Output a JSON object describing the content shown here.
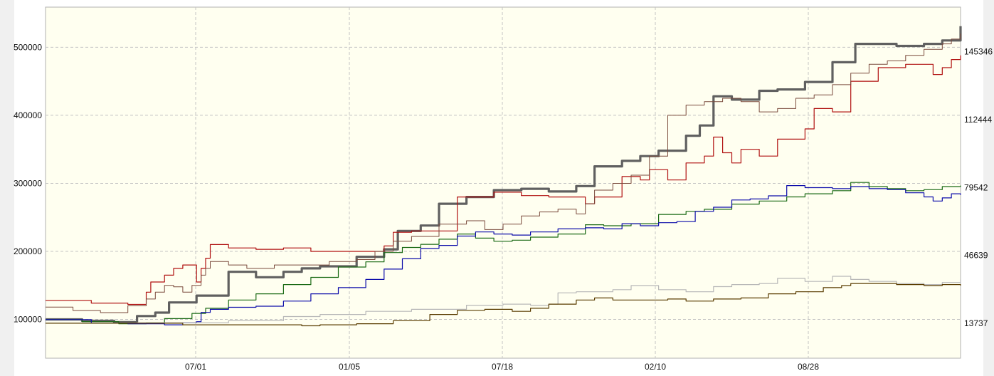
{
  "chart_data": {
    "type": "line",
    "title": "",
    "xlabel": "",
    "ylabel": "",
    "x_ticks": [
      "07/01",
      "01/05",
      "07/18",
      "02/10",
      "08/28"
    ],
    "left_axis": {
      "ticks": [
        100000,
        200000,
        300000,
        400000,
        500000
      ],
      "range": [
        43000,
        559000
      ]
    },
    "right_axis": {
      "ticks": [
        13737,
        46639,
        79542,
        112444,
        145346
      ],
      "range": [
        -3200,
        167000
      ]
    },
    "grid": true,
    "background": "#fffff0",
    "x_range": [
      0,
      100
    ],
    "series": [
      {
        "color": "#606060",
        "width": 3.2,
        "axis": "left",
        "x": [
          0,
          4,
          7.5,
          10,
          12,
          13.5,
          15,
          16.5,
          18,
          20,
          23,
          26,
          28,
          30,
          34,
          37,
          38.5,
          41,
          43,
          46,
          49,
          52,
          55,
          58,
          60,
          63,
          65,
          67,
          70,
          71.5,
          73,
          75,
          78,
          80,
          83,
          86,
          88.5,
          90,
          93,
          96,
          98,
          100
        ],
        "y": [
          100000,
          98000,
          96000,
          105000,
          110000,
          125000,
          125000,
          135000,
          135000,
          170000,
          162000,
          170000,
          175000,
          178000,
          192000,
          203000,
          230000,
          238000,
          270000,
          280000,
          290000,
          292000,
          288000,
          296000,
          325000,
          333000,
          340000,
          348000,
          370000,
          385000,
          428000,
          423000,
          436000,
          438000,
          449000,
          478000,
          505000,
          505000,
          502000,
          505000,
          510000,
          531000
        ]
      },
      {
        "color": "#b01010",
        "width": 1.2,
        "axis": "left",
        "x": [
          0,
          5,
          9,
          11,
          11.5,
          13,
          14,
          15,
          16.5,
          17,
          17.5,
          18,
          20,
          23,
          26,
          29,
          34,
          37,
          38,
          40,
          45,
          49,
          52,
          55,
          59,
          60,
          63,
          65,
          66,
          68,
          70,
          71,
          72,
          73,
          74,
          75,
          76,
          78,
          80,
          83,
          84,
          86,
          88,
          90,
          91,
          94,
          96,
          97,
          98,
          99,
          100
        ],
        "y": [
          128000,
          124000,
          122000,
          140000,
          155000,
          165000,
          175000,
          180000,
          155000,
          175000,
          190000,
          210000,
          205000,
          203000,
          205000,
          200000,
          200000,
          208000,
          228000,
          230000,
          280000,
          287000,
          282000,
          280000,
          270000,
          280000,
          310000,
          305000,
          320000,
          305000,
          330000,
          330000,
          340000,
          368000,
          345000,
          330000,
          350000,
          340000,
          365000,
          380000,
          410000,
          405000,
          450000,
          450000,
          470000,
          475000,
          475000,
          460000,
          470000,
          482000,
          488000
        ]
      },
      {
        "color": "#7a4a3c",
        "width": 1.0,
        "axis": "left",
        "x": [
          0,
          3,
          6,
          9,
          11,
          12,
          13,
          14,
          15,
          16,
          17,
          17.5,
          18,
          20,
          22,
          25,
          28,
          31,
          34,
          36,
          38,
          40,
          43,
          46,
          48,
          50,
          52,
          54,
          56,
          58,
          59,
          60,
          62,
          64,
          66,
          68,
          70,
          72,
          74,
          76,
          78,
          80,
          82,
          84,
          86,
          88,
          90,
          92,
          94,
          96,
          98,
          99,
          100
        ],
        "y": [
          118000,
          113000,
          110000,
          120000,
          130000,
          140000,
          150000,
          148000,
          140000,
          150000,
          165000,
          175000,
          185000,
          180000,
          175000,
          180000,
          180000,
          185000,
          188000,
          200000,
          215000,
          222000,
          240000,
          245000,
          232000,
          240000,
          252000,
          258000,
          262000,
          255000,
          270000,
          290000,
          300000,
          312000,
          340000,
          400000,
          415000,
          420000,
          425000,
          420000,
          405000,
          410000,
          425000,
          430000,
          445000,
          462000,
          475000,
          480000,
          488000,
          497000,
          505000,
          512000,
          520000
        ]
      },
      {
        "color": "#1a6a14",
        "width": 1.2,
        "axis": "right",
        "x": [
          0,
          4,
          8,
          11,
          13,
          16,
          17.5,
          20,
          23,
          26,
          29,
          32,
          35,
          37,
          39,
          41,
          43,
          45,
          47,
          49,
          51,
          53,
          56,
          59,
          61,
          64,
          67,
          70,
          72,
          75,
          78,
          81,
          83,
          86,
          88,
          90,
          92,
          94,
          96,
          98,
          100
        ],
        "y": [
          15500,
          14500,
          13500,
          14000,
          16000,
          18500,
          21000,
          25000,
          28000,
          32500,
          36000,
          41000,
          43500,
          48000,
          50500,
          52000,
          54500,
          57000,
          55000,
          53500,
          54000,
          55500,
          57000,
          61500,
          61000,
          62000,
          66500,
          68000,
          69000,
          71500,
          73000,
          75000,
          76500,
          78000,
          82000,
          80000,
          79000,
          78000,
          78500,
          80000,
          80500
        ]
      },
      {
        "color": "#0d0daa",
        "width": 1.2,
        "axis": "right",
        "x": [
          0,
          5,
          9,
          13,
          15,
          16.5,
          17,
          18,
          20,
          23,
          26,
          29,
          32,
          35,
          37,
          39,
          41,
          43,
          45,
          47,
          49,
          51,
          53,
          56,
          59,
          61,
          63,
          65,
          67,
          69,
          71,
          73,
          75,
          77,
          79,
          81,
          83,
          86,
          88,
          90,
          92,
          94,
          96,
          97,
          98,
          99,
          100
        ],
        "y": [
          15500,
          13800,
          13500,
          13000,
          14000,
          14500,
          19000,
          20500,
          21500,
          22000,
          24500,
          28000,
          31000,
          35000,
          40000,
          45000,
          50000,
          51500,
          56000,
          58000,
          57000,
          56500,
          58000,
          59500,
          60000,
          59500,
          62000,
          61000,
          62500,
          63000,
          68000,
          70000,
          73500,
          74000,
          75500,
          80500,
          79500,
          79000,
          80000,
          79000,
          78500,
          77000,
          75000,
          73000,
          74500,
          76500,
          76000
        ]
      },
      {
        "color": "#b8b8b8",
        "width": 1.2,
        "axis": "right",
        "x": [
          0,
          10,
          20,
          26,
          30,
          35,
          40,
          46,
          50,
          53,
          55,
          56,
          58,
          60,
          62,
          64,
          67,
          70,
          73,
          75,
          78,
          80,
          83,
          86,
          88,
          90,
          93,
          96,
          98,
          100
        ],
        "y": [
          13737,
          14000,
          15000,
          17000,
          18000,
          19500,
          20500,
          22500,
          23000,
          22500,
          23000,
          28500,
          29000,
          29000,
          30000,
          32000,
          30000,
          29000,
          31500,
          32500,
          33000,
          35500,
          34000,
          36500,
          35000,
          34000,
          33000,
          32500,
          33500,
          35000
        ]
      },
      {
        "color": "#5a3c00",
        "width": 1.2,
        "axis": "right",
        "x": [
          0,
          10,
          15,
          20,
          28,
          30,
          34,
          38,
          42,
          45,
          48,
          51,
          53,
          55,
          58,
          60,
          62,
          65,
          68,
          70,
          73,
          76,
          79,
          82,
          85,
          87,
          88,
          90,
          93,
          96,
          98,
          100
        ],
        "y": [
          13737,
          13737,
          13000,
          13000,
          12500,
          13000,
          13500,
          15000,
          18000,
          20000,
          20500,
          19500,
          21000,
          23000,
          25000,
          26000,
          25000,
          25000,
          25500,
          24500,
          25500,
          26000,
          28000,
          29000,
          31000,
          32000,
          33000,
          33000,
          32500,
          32000,
          32500,
          32000
        ]
      }
    ]
  }
}
